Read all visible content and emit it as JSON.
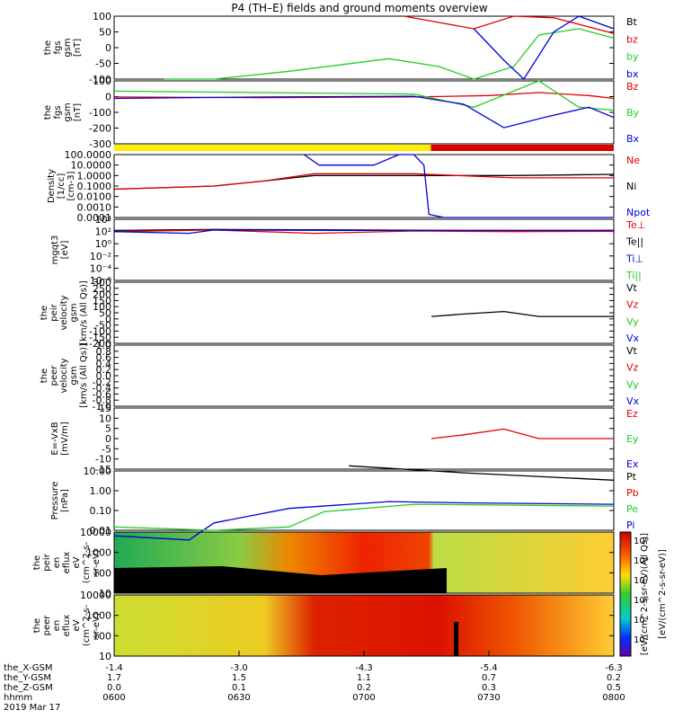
{
  "title": "P4 (TH–E) fields and ground moments overview",
  "colors": {
    "black": "#000000",
    "red": "#e00000",
    "green": "#22cc22",
    "blue": "#0000dd",
    "yellow": "#ffee00",
    "bar_red": "#dd0000"
  },
  "mode_bar": {
    "segments": [
      {
        "from": 0.0,
        "to": 0.634,
        "color": "yellow"
      },
      {
        "from": 0.634,
        "to": 1.0,
        "color": "bar_red"
      }
    ]
  },
  "panels": [
    {
      "id": "fgs",
      "ylabel": [
        "the",
        "fgs",
        "gsm",
        "[nT]"
      ],
      "ticks": [
        "100",
        "50",
        "0",
        "-50",
        "-100"
      ],
      "legend": [
        {
          "text": "Bt",
          "color": "black"
        },
        {
          "text": "bz",
          "color": "red"
        },
        {
          "text": "by",
          "color": "green"
        },
        {
          "text": "bx",
          "color": "blue"
        }
      ]
    },
    {
      "id": "fgs2",
      "ylabel": [
        "the",
        "fgs",
        "gsm",
        "[nT]"
      ],
      "ticks": [
        "100",
        "0",
        "-100",
        "-200",
        "-300"
      ],
      "legend": [
        {
          "text": "Bz",
          "color": "red"
        },
        {
          "text": "By",
          "color": "green"
        },
        {
          "text": "Bx",
          "color": "blue"
        }
      ]
    },
    {
      "id": "density",
      "ylabel": [
        "Density",
        "[1/cc]",
        "[cm-3]"
      ],
      "ticks": [
        "100.0000",
        "10.0000",
        "1.0000",
        "0.1000",
        "0.0100",
        "0.0010",
        "0.0001"
      ],
      "legend": [
        {
          "text": "Ne",
          "color": "red"
        },
        {
          "text": "Ni",
          "color": "black"
        },
        {
          "text": "Npot",
          "color": "blue"
        }
      ]
    },
    {
      "id": "temp",
      "ylabel": [
        "mgqt3",
        "[eV]"
      ],
      "ticks": [
        "10⁴",
        "10²",
        "10⁰",
        "10⁻²",
        "10⁻⁴",
        "10⁻⁶"
      ],
      "legend": [
        {
          "text": "Te⊥",
          "color": "red"
        },
        {
          "text": "Te||",
          "color": "black"
        },
        {
          "text": "Ti⊥",
          "color": "blue"
        },
        {
          "text": "Ti||",
          "color": "green"
        }
      ]
    },
    {
      "id": "peir_vel",
      "ylabel": [
        "the",
        "peir",
        "velocity",
        "gsm",
        "[km/s (All Qs)]"
      ],
      "ticks": [
        "300",
        "250",
        "200",
        "150",
        "100",
        "50",
        "0",
        "-50",
        "-100",
        "-150",
        "-200"
      ],
      "legend": [
        {
          "text": "Vt",
          "color": "black"
        },
        {
          "text": "Vz",
          "color": "red"
        },
        {
          "text": "Vy",
          "color": "green"
        },
        {
          "text": "Vx",
          "color": "blue"
        }
      ]
    },
    {
      "id": "peer_vel",
      "ylabel": [
        "the",
        "peer",
        "velocity",
        "gsm",
        "[km/s (All Qs)]"
      ],
      "ticks": [
        "1.0",
        "0.8",
        "0.6",
        "0.4",
        "0.2",
        "0.0",
        "-0.2",
        "-0.4",
        "-0.6",
        "-0.8",
        "-1.0"
      ],
      "legend": [
        {
          "text": "Vt",
          "color": "black"
        },
        {
          "text": "Vz",
          "color": "red"
        },
        {
          "text": "Vy",
          "color": "green"
        },
        {
          "text": "Vx",
          "color": "blue"
        }
      ]
    },
    {
      "id": "efield",
      "ylabel": [
        "E=-VxB",
        "[mV/m]"
      ],
      "ticks": [
        "15",
        "10",
        "5",
        "0",
        "-5",
        "-10",
        "-15"
      ],
      "legend": [
        {
          "text": "Ez",
          "color": "red"
        },
        {
          "text": "Ey",
          "color": "green"
        },
        {
          "text": "Ex",
          "color": "blue"
        }
      ]
    },
    {
      "id": "pressure",
      "ylabel": [
        "Pressure",
        "[nPa]"
      ],
      "ticks": [
        "10.00",
        "1.00",
        "0.10",
        "0.01"
      ],
      "legend": [
        {
          "text": "Pt",
          "color": "black"
        },
        {
          "text": "Pb",
          "color": "red"
        },
        {
          "text": "Pe",
          "color": "green"
        },
        {
          "text": "Pi",
          "color": "blue"
        }
      ]
    },
    {
      "id": "peir_spec",
      "ylabel": [
        "the",
        "peir",
        "en",
        "eflux",
        "eV",
        "(cm^2-s-",
        "sr-eV)"
      ],
      "ticks": [
        "10000",
        "1000",
        "100",
        "10"
      ]
    },
    {
      "id": "peer_spec",
      "ylabel": [
        "the",
        "peer",
        "en",
        "eflux",
        "eV",
        "(cm^2-s-",
        "sr-eV)"
      ],
      "ticks": [
        "10000",
        "1000",
        "100",
        "10"
      ]
    }
  ],
  "colorbar": {
    "ticks": [
      "10⁶",
      "10⁴",
      "10²",
      "10⁶",
      "10⁴",
      "10²"
    ],
    "label": "[eV/(cm^2-s-sr-eV)]",
    "inner_label": "[eV/(cm^2-s-sr-eV)(All Qs)]"
  },
  "x_axis": {
    "rows": [
      {
        "label": "the_X-GSM",
        "values": [
          "-1.4",
          "-3.0",
          "-4.3",
          "-5.4",
          "-6.3"
        ]
      },
      {
        "label": "the_Y-GSM",
        "values": [
          "1.7",
          "1.5",
          "1.1",
          "0.7",
          "0.2"
        ]
      },
      {
        "label": "the_Z-GSM",
        "values": [
          "0.0",
          "0.1",
          "0.2",
          "0.3",
          "0.5"
        ]
      },
      {
        "label": "hhmm",
        "values": [
          "0600",
          "0630",
          "0700",
          "0730",
          "0800"
        ]
      }
    ],
    "date": "2019 Mar 17"
  },
  "chart_data": {
    "type": "line",
    "title": "P4 (TH–E) fields and ground moments overview",
    "x": [
      "0600",
      "0630",
      "0700",
      "0730",
      "0800"
    ],
    "series": [
      {
        "name": "by",
        "panel": "fgs",
        "color": "green",
        "x": [
          0.1,
          0.2,
          0.35,
          0.5,
          0.55,
          0.65,
          0.72,
          0.8,
          0.85,
          0.93,
          1.0
        ],
        "values": [
          -100,
          -100,
          -75,
          -45,
          -35,
          -60,
          -100,
          -60,
          40,
          60,
          30
        ]
      },
      {
        "name": "bz",
        "panel": "fgs",
        "color": "red",
        "x": [
          0.58,
          0.65,
          0.72,
          0.8,
          0.88,
          0.94,
          1.0
        ],
        "values": [
          100,
          80,
          60,
          100,
          95,
          70,
          45
        ]
      },
      {
        "name": "bx",
        "panel": "fgs",
        "color": "blue",
        "x": [
          0.72,
          0.78,
          0.82,
          0.88,
          0.93,
          1.0
        ],
        "values": [
          60,
          -40,
          -100,
          50,
          100,
          60
        ]
      },
      {
        "name": "Bz",
        "panel": "fgs2",
        "color": "red",
        "x": [
          0.0,
          0.3,
          0.6,
          0.75,
          0.85,
          0.95,
          1.0
        ],
        "values": [
          -10,
          -15,
          -10,
          0,
          20,
          0,
          -20
        ]
      },
      {
        "name": "By",
        "panel": "fgs2",
        "color": "green",
        "x": [
          0.0,
          0.3,
          0.6,
          0.72,
          0.85,
          0.93,
          1.0
        ],
        "values": [
          30,
          20,
          10,
          -80,
          100,
          -80,
          -100
        ]
      },
      {
        "name": "Bx",
        "panel": "fgs2",
        "color": "blue",
        "x": [
          0.0,
          0.3,
          0.6,
          0.7,
          0.78,
          0.86,
          0.95,
          1.0
        ],
        "values": [
          -20,
          -10,
          -5,
          -60,
          -220,
          -150,
          -80,
          -150
        ]
      },
      {
        "name": "Ni",
        "panel": "density",
        "color": "black",
        "x": [
          0.0,
          0.2,
          0.3,
          0.4,
          0.6,
          0.8,
          1.0
        ],
        "values": [
          0.05,
          0.1,
          0.3,
          1.0,
          1.0,
          1.0,
          1.3
        ]
      },
      {
        "name": "Ne",
        "panel": "density",
        "color": "red",
        "x": [
          0.0,
          0.2,
          0.3,
          0.4,
          0.6,
          0.8,
          1.0
        ],
        "values": [
          0.05,
          0.1,
          0.3,
          1.5,
          1.5,
          0.6,
          0.6
        ]
      },
      {
        "name": "Npot",
        "panel": "density",
        "color": "blue",
        "x": [
          0.38,
          0.41,
          0.52,
          0.57,
          0.6,
          0.62,
          0.63,
          0.66,
          1.0
        ],
        "values": [
          100,
          10,
          10,
          100,
          100,
          10,
          0.0002,
          0.0001,
          0.0001
        ]
      },
      {
        "name": "Te||",
        "panel": "temp",
        "color": "black",
        "x": [
          0.0,
          0.2,
          0.5,
          0.7,
          1.0
        ],
        "values": [
          100,
          150,
          120,
          100,
          100
        ]
      },
      {
        "name": "Te⊥",
        "panel": "temp",
        "color": "red",
        "x": [
          0.0,
          0.2,
          0.4,
          0.6,
          0.8,
          1.0
        ],
        "values": [
          60,
          120,
          30,
          80,
          60,
          70
        ]
      },
      {
        "name": "Ti⊥",
        "panel": "temp",
        "color": "blue",
        "x": [
          0.0,
          0.15,
          0.2,
          0.5,
          1.0
        ],
        "values": [
          60,
          30,
          120,
          100,
          100
        ]
      },
      {
        "name": "Vt",
        "panel": "peir_vel",
        "color": "black",
        "x": [
          0.635,
          0.7,
          0.78,
          0.85,
          1.0
        ],
        "values": [
          20,
          40,
          60,
          20,
          20
        ]
      },
      {
        "name": "Ez",
        "panel": "efield",
        "color": "red",
        "x": [
          0.635,
          0.7,
          0.78,
          0.85,
          1.0
        ],
        "values": [
          0,
          2,
          5,
          0,
          0
        ]
      },
      {
        "name": "Pt",
        "panel": "pressure",
        "color": "black",
        "x": [
          0.47,
          0.7,
          1.0
        ],
        "values": [
          60,
          25,
          10
        ]
      },
      {
        "name": "Pi",
        "panel": "pressure",
        "color": "blue",
        "x": [
          0.0,
          0.15,
          0.2,
          0.35,
          0.55,
          0.7,
          1.0
        ],
        "values": [
          0.01,
          0.006,
          0.05,
          0.3,
          0.7,
          0.6,
          0.5
        ]
      },
      {
        "name": "Pe",
        "panel": "pressure",
        "color": "green",
        "x": [
          0.0,
          0.2,
          0.35,
          0.42,
          0.6,
          1.0
        ],
        "values": [
          0.03,
          0.02,
          0.03,
          0.2,
          0.5,
          0.4
        ]
      }
    ]
  }
}
